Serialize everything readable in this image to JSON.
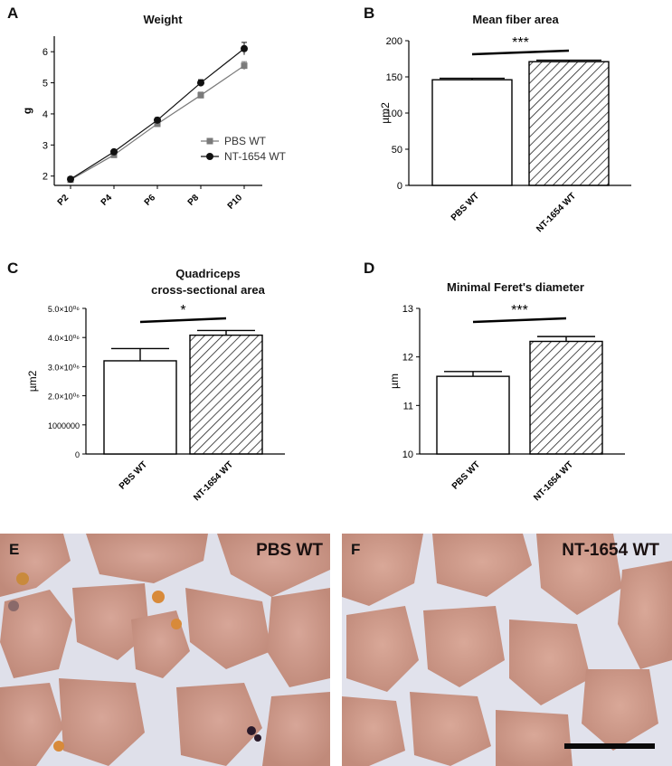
{
  "panels": {
    "A": "A",
    "B": "B",
    "C": "C",
    "D": "D",
    "E": "E",
    "F": "F"
  },
  "chart_data": [
    {
      "id": "weight",
      "type": "line",
      "title": "Weight",
      "ylabel": "g",
      "xlabel": "",
      "categories": [
        "P2",
        "P4",
        "P6",
        "P8",
        "P10"
      ],
      "ylim": [
        1.7,
        6.5
      ],
      "yticks": [
        2,
        3,
        4,
        5,
        6
      ],
      "legend_position": "right",
      "series": [
        {
          "name": "PBS WT",
          "marker": "square",
          "color": "#7a7a7a",
          "values": [
            1.88,
            2.68,
            3.68,
            4.6,
            5.55
          ],
          "errors": [
            0.04,
            0.06,
            0.07,
            0.1,
            0.13
          ]
        },
        {
          "name": "NT-1654 WT",
          "marker": "circle",
          "color": "#111111",
          "values": [
            1.9,
            2.78,
            3.8,
            5.0,
            6.1
          ],
          "errors": [
            0.04,
            0.06,
            0.08,
            0.1,
            0.2
          ]
        }
      ]
    },
    {
      "id": "fiber",
      "type": "bar",
      "title": "Mean fiber area",
      "ylabel": "µm2",
      "categories": [
        "PBS WT",
        "NT-1654 WT"
      ],
      "values": [
        146,
        171
      ],
      "errors": [
        2,
        2
      ],
      "ylim": [
        0,
        200
      ],
      "yticks": [
        0,
        50,
        100,
        150,
        200
      ],
      "ytick_labels": [
        "0",
        "50",
        "100",
        "150",
        "200"
      ],
      "significance": "***"
    },
    {
      "id": "quad",
      "type": "bar",
      "title": "Quadriceps cross-sectional area",
      "title_lines": [
        "Quadriceps",
        "cross-sectional area"
      ],
      "ylabel": "µm2",
      "categories": [
        "PBS WT",
        "NT-1654 WT"
      ],
      "values": [
        3200000,
        4080000
      ],
      "errors": [
        420000,
        160000
      ],
      "ylim": [
        0,
        5000000
      ],
      "yticks": [
        0,
        1000000,
        2000000,
        3000000,
        4000000,
        5000000
      ],
      "ytick_labels": [
        "0",
        "1000000",
        "2.0×10⁰⁶",
        "3.0×10⁰⁶",
        "4.0×10⁰⁶",
        "5.0×10⁰⁶"
      ],
      "significance": "*"
    },
    {
      "id": "feret",
      "type": "bar",
      "title": "Minimal Feret's diameter",
      "ylabel": "µm",
      "categories": [
        "PBS WT",
        "NT-1654 WT"
      ],
      "values": [
        11.6,
        12.32
      ],
      "errors": [
        0.1,
        0.1
      ],
      "ylim": [
        10,
        13
      ],
      "yticks": [
        10,
        11,
        12,
        13
      ],
      "ytick_labels": [
        "10",
        "11",
        "12",
        "13"
      ],
      "significance": "***"
    }
  ],
  "micrographs": {
    "left_label": "PBS WT",
    "right_label": "NT-1654 WT"
  }
}
